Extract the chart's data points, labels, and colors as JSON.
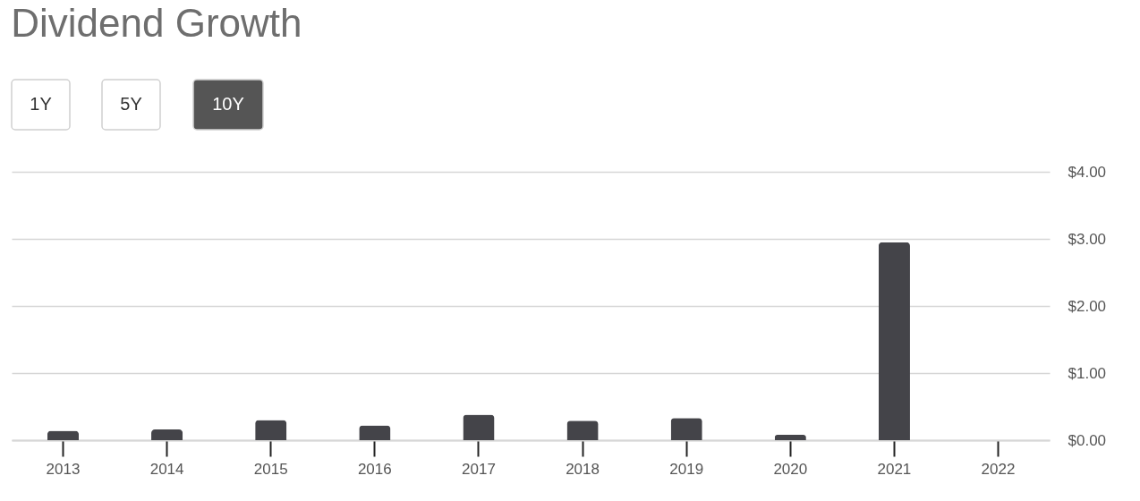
{
  "chart_data": {
    "type": "bar",
    "title": "Dividend Growth",
    "categories": [
      "2013",
      "2014",
      "2015",
      "2016",
      "2017",
      "2018",
      "2019",
      "2020",
      "2021",
      "2022"
    ],
    "values": [
      0.14,
      0.16,
      0.3,
      0.22,
      0.38,
      0.29,
      0.33,
      0.08,
      2.95,
      null
    ],
    "color": "#444449",
    "ylim": [
      0,
      4
    ],
    "yticks": [
      {
        "value": 0,
        "label": "$0.00"
      },
      {
        "value": 1,
        "label": "$1.00"
      },
      {
        "value": 2,
        "label": "$2.00"
      },
      {
        "value": 3,
        "label": "$3.00"
      },
      {
        "value": 4,
        "label": "$4.00"
      }
    ],
    "grid": "y",
    "annotations": [
      "1Y",
      "5Y",
      "10Y"
    ]
  }
}
